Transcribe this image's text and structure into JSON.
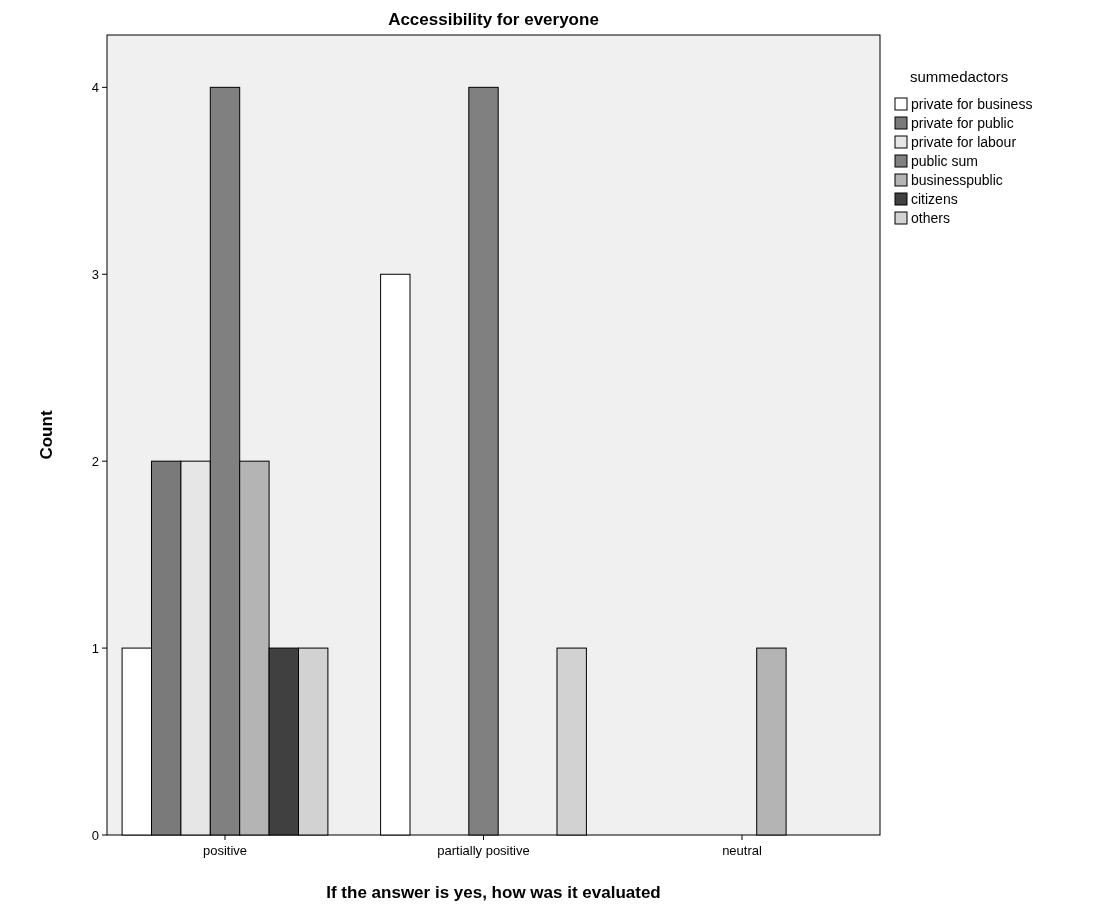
{
  "chart_data": {
    "type": "bar",
    "title": "Accessibility for everyone",
    "xlabel": "If the answer is yes, how was it evaluated",
    "ylabel": "Count",
    "legend_title": "summedactors",
    "categories": [
      "positive",
      "partially positive",
      "neutral"
    ],
    "series": [
      {
        "name": "private for business",
        "color": "#ffffff",
        "values": [
          1,
          3,
          null
        ]
      },
      {
        "name": "private for public",
        "color": "#7a7a7a",
        "values": [
          2,
          null,
          null
        ]
      },
      {
        "name": "private for labour",
        "color": "#e6e6e6",
        "values": [
          2,
          null,
          null
        ]
      },
      {
        "name": "public sum",
        "color": "#808080",
        "values": [
          4,
          4,
          null
        ]
      },
      {
        "name": "businesspublic",
        "color": "#b4b4b4",
        "values": [
          2,
          null,
          1
        ]
      },
      {
        "name": "citizens",
        "color": "#404040",
        "values": [
          1,
          null,
          null
        ]
      },
      {
        "name": "others",
        "color": "#d2d2d2",
        "values": [
          1,
          1,
          null
        ]
      }
    ],
    "ylim": [
      0,
      4.28
    ],
    "yticks": [
      0,
      1,
      2,
      3,
      4
    ],
    "grid": false,
    "legend": "top right"
  }
}
